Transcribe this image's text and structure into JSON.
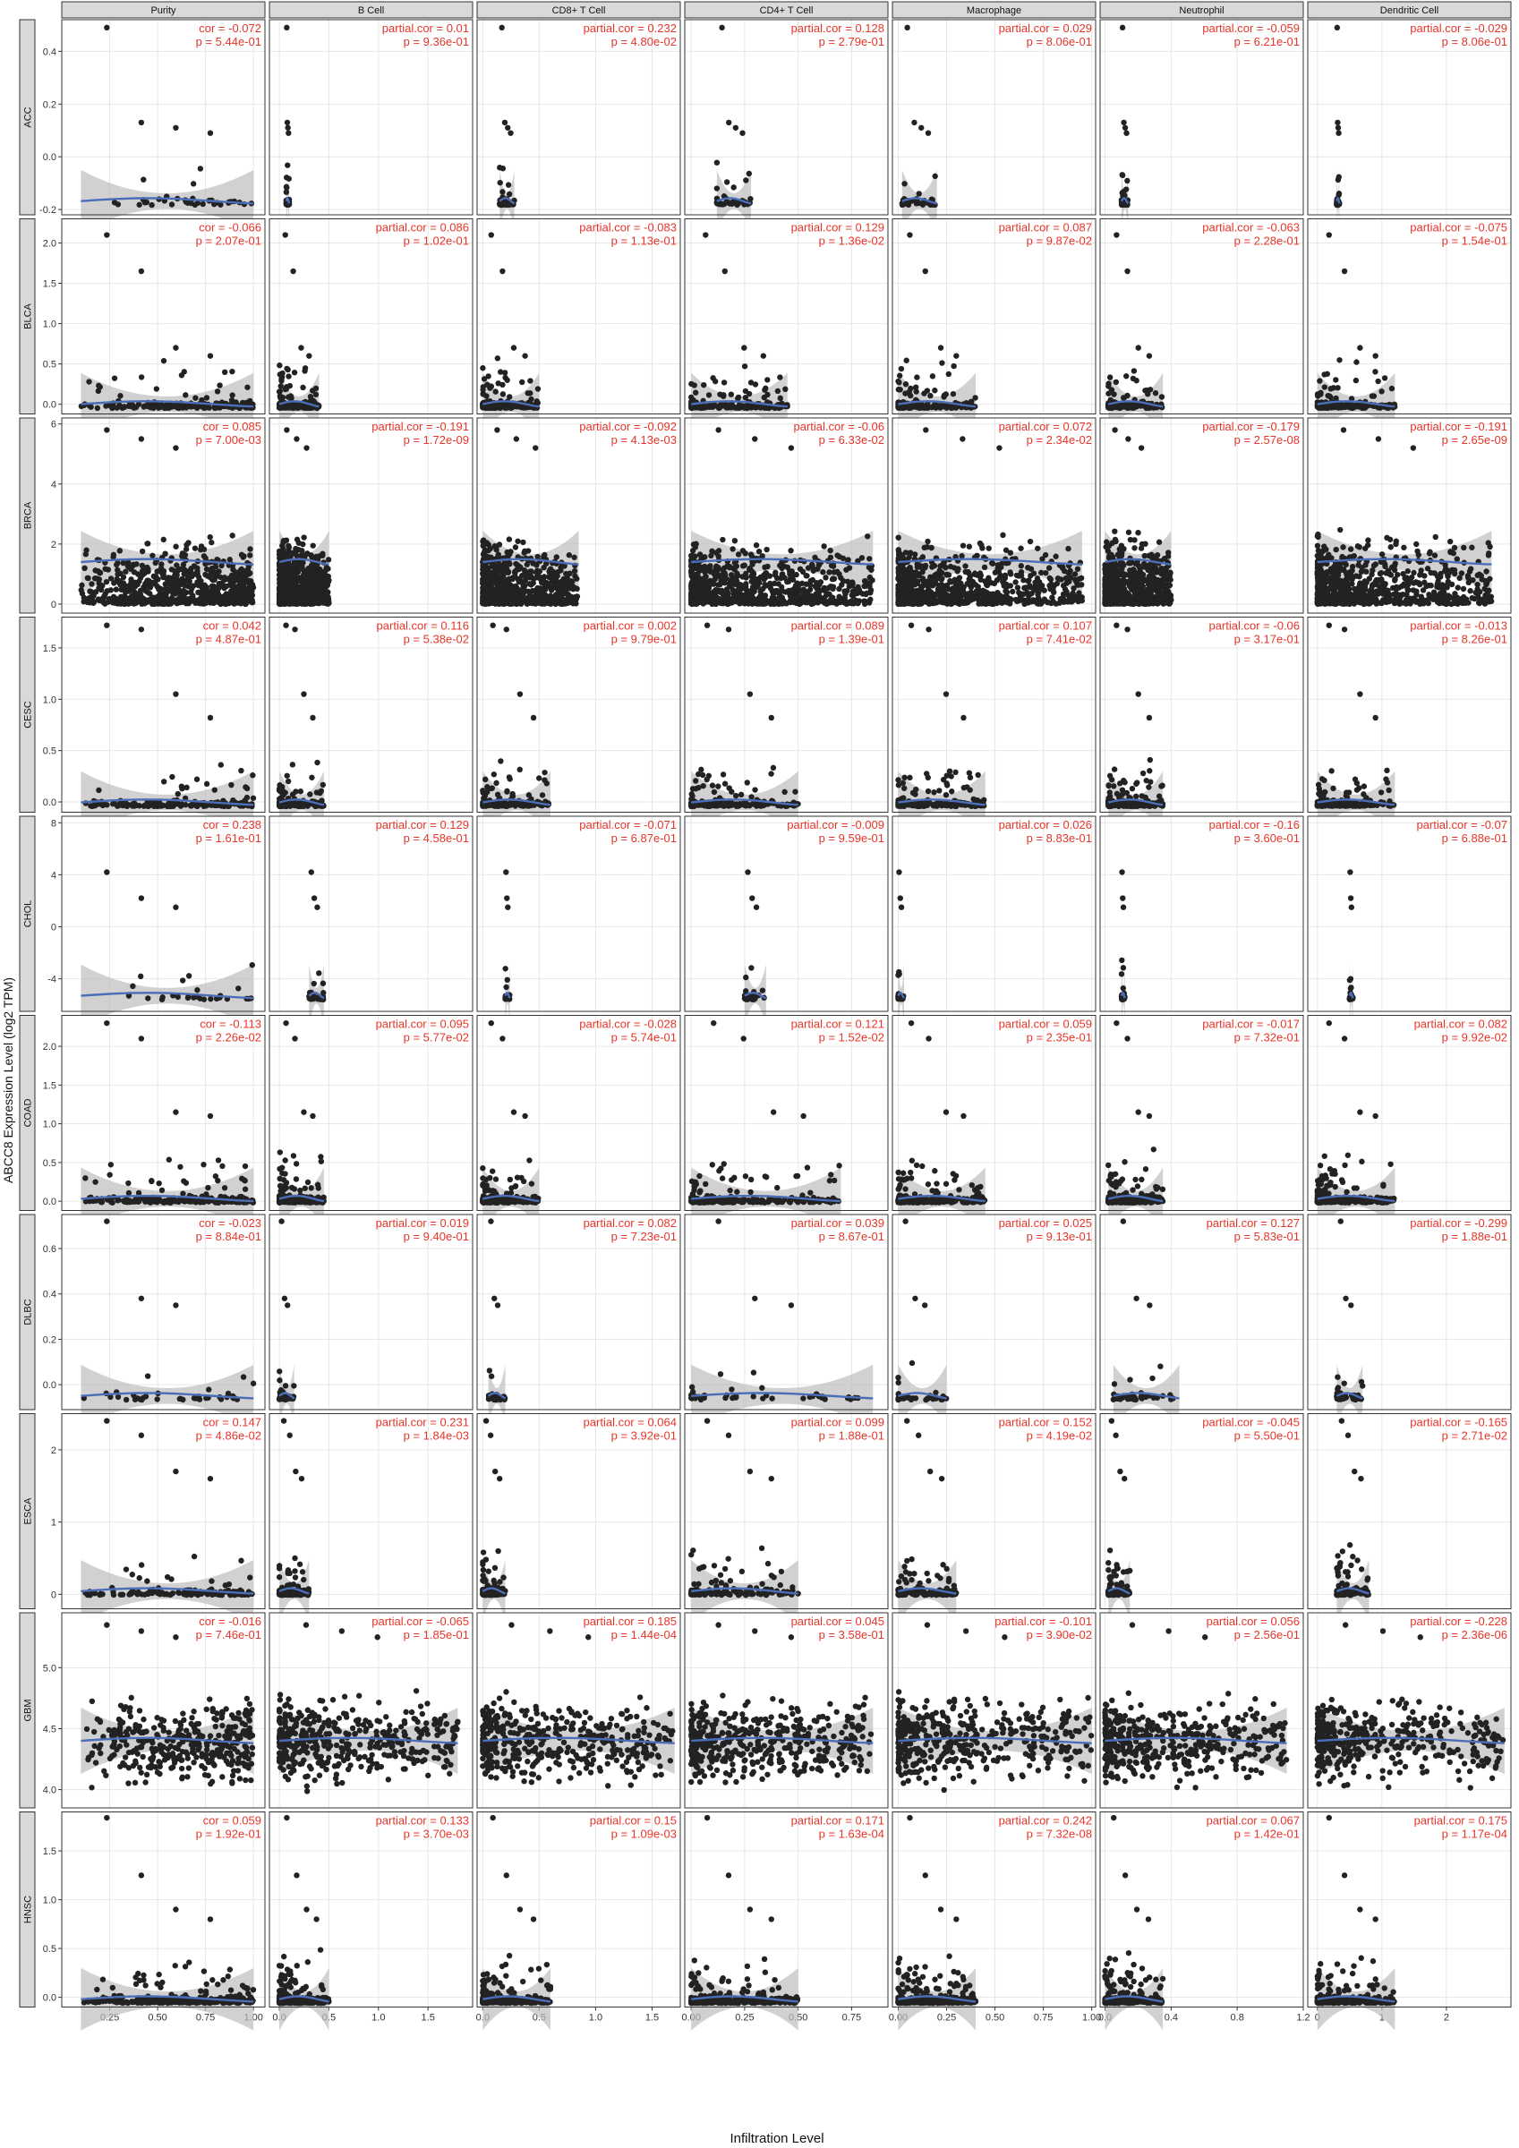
{
  "figure": {
    "ylabel": "ABCC8 Expression Level (log2 TPM)",
    "xlabel": "Infiltration Level"
  },
  "colors": {
    "point": "#222222",
    "trend": "#4a6eb8",
    "band": "#bdbdbd",
    "stat": "#e8352a",
    "strip": "#d9d9d9"
  },
  "chart_data": {
    "type": "scatter",
    "columns": [
      "Purity",
      "B Cell",
      "CD8+ T Cell",
      "CD4+ T Cell",
      "Macrophage",
      "Neutrophil",
      "Dendritic Cell"
    ],
    "x_axes": [
      {
        "ticks": [
          0.25,
          0.5,
          0.75,
          1.0
        ],
        "labels": [
          "0.25",
          "0.50",
          "0.75",
          "1.00"
        ],
        "lim": [
          0.0,
          1.06
        ]
      },
      {
        "ticks": [
          0.0,
          0.5,
          1.0,
          1.5
        ],
        "labels": [
          "0.0",
          "0.5",
          "1.0",
          "1.5"
        ],
        "lim": [
          -0.1,
          1.95
        ]
      },
      {
        "ticks": [
          0.0,
          0.5,
          1.0,
          1.5
        ],
        "labels": [
          "0.0",
          "0.5",
          "1.0",
          "1.5"
        ],
        "lim": [
          -0.05,
          1.75
        ]
      },
      {
        "ticks": [
          0.0,
          0.25,
          0.5,
          0.75
        ],
        "labels": [
          "0.00",
          "0.25",
          "0.50",
          "0.75"
        ],
        "lim": [
          -0.03,
          0.92
        ]
      },
      {
        "ticks": [
          0.0,
          0.25,
          0.5,
          0.75,
          1.0
        ],
        "labels": [
          "0.00",
          "0.25",
          "0.50",
          "0.75",
          "1.00"
        ],
        "lim": [
          -0.03,
          1.02
        ]
      },
      {
        "ticks": [
          0.0,
          0.4,
          0.8,
          1.2
        ],
        "labels": [
          "0.0",
          "0.4",
          "0.8",
          "1.2"
        ],
        "lim": [
          -0.03,
          1.2
        ]
      },
      {
        "ticks": [
          0,
          1,
          2
        ],
        "labels": [
          "0",
          "1",
          "2"
        ],
        "lim": [
          -0.15,
          3.0
        ]
      }
    ],
    "rows": [
      {
        "name": "ACC",
        "ylim": [
          -0.22,
          0.52
        ],
        "yticks": [
          -0.2,
          0.0,
          0.2,
          0.4
        ],
        "ylabels": [
          "-0.2",
          "0.0",
          "0.2",
          "0.4"
        ],
        "stats": [
          [
            "cor = -0.072",
            "p = 5.44e-01"
          ],
          [
            "partial.cor = 0.01",
            "p = 9.36e-01"
          ],
          [
            "partial.cor = 0.232",
            "p = 4.80e-02"
          ],
          [
            "partial.cor = 0.128",
            "p = 2.79e-01"
          ],
          [
            "partial.cor = 0.029",
            "p = 8.06e-01"
          ],
          [
            "partial.cor = -0.059",
            "p = 6.21e-01"
          ],
          [
            "partial.cor = -0.029",
            "p = 8.06e-01"
          ]
        ],
        "ranges": [
          [
            0.1,
            1.0
          ],
          [
            0.07,
            0.1
          ],
          [
            0.15,
            0.28
          ],
          [
            0.12,
            0.28
          ],
          [
            0.02,
            0.2
          ],
          [
            0.1,
            0.14
          ],
          [
            0.3,
            0.34
          ]
        ],
        "outliers": [
          0.49,
          0.13,
          0.11,
          0.09
        ]
      },
      {
        "name": "BLCA",
        "ylim": [
          -0.12,
          2.3
        ],
        "yticks": [
          0.0,
          0.5,
          1.0,
          1.5,
          2.0
        ],
        "ylabels": [
          "0.0",
          "0.5",
          "1.0",
          "1.5",
          "2.0"
        ],
        "stats": [
          [
            "cor = -0.066",
            "p = 2.07e-01"
          ],
          [
            "partial.cor = 0.086",
            "p = 1.02e-01"
          ],
          [
            "partial.cor = -0.083",
            "p = 1.13e-01"
          ],
          [
            "partial.cor = 0.129",
            "p = 1.36e-02"
          ],
          [
            "partial.cor = 0.087",
            "p = 9.87e-02"
          ],
          [
            "partial.cor = -0.063",
            "p = 2.28e-01"
          ],
          [
            "partial.cor = -0.075",
            "p = 1.54e-01"
          ]
        ],
        "ranges": [
          [
            0.1,
            1.0
          ],
          [
            0.0,
            0.4
          ],
          [
            0.0,
            0.5
          ],
          [
            0.0,
            0.45
          ],
          [
            0.0,
            0.4
          ],
          [
            0.02,
            0.35
          ],
          [
            0.0,
            1.2
          ]
        ],
        "outliers": [
          2.1,
          1.65,
          0.7,
          0.6
        ]
      },
      {
        "name": "BRCA",
        "ylim": [
          -0.3,
          6.2
        ],
        "yticks": [
          0,
          2,
          4,
          6
        ],
        "ylabels": [
          "0",
          "2",
          "4",
          "6"
        ],
        "stats": [
          [
            "cor = 0.085",
            "p = 7.00e-03"
          ],
          [
            "partial.cor = -0.191",
            "p = 1.72e-09"
          ],
          [
            "partial.cor = -0.092",
            "p = 4.13e-03"
          ],
          [
            "partial.cor = -0.06",
            "p = 6.33e-02"
          ],
          [
            "partial.cor = 0.072",
            "p = 2.34e-02"
          ],
          [
            "partial.cor = -0.179",
            "p = 2.57e-08"
          ],
          [
            "partial.cor = -0.191",
            "p = 2.65e-09"
          ]
        ],
        "ranges": [
          [
            0.1,
            1.0
          ],
          [
            0.0,
            0.5
          ],
          [
            0.0,
            0.85
          ],
          [
            0.0,
            0.85
          ],
          [
            0.0,
            0.95
          ],
          [
            0.0,
            0.4
          ],
          [
            0.0,
            2.7
          ]
        ],
        "outliers": [
          5.8,
          5.5,
          5.2
        ]
      },
      {
        "name": "CESC",
        "ylim": [
          -0.1,
          1.8
        ],
        "yticks": [
          0.0,
          0.5,
          1.0,
          1.5
        ],
        "ylabels": [
          "0.0",
          "0.5",
          "1.0",
          "1.5"
        ],
        "stats": [
          [
            "cor = 0.042",
            "p = 4.87e-01"
          ],
          [
            "partial.cor = 0.116",
            "p = 5.38e-02"
          ],
          [
            "partial.cor = 0.002",
            "p = 9.79e-01"
          ],
          [
            "partial.cor = 0.089",
            "p = 1.39e-01"
          ],
          [
            "partial.cor = 0.107",
            "p = 7.41e-02"
          ],
          [
            "partial.cor = -0.06",
            "p = 3.17e-01"
          ],
          [
            "partial.cor = -0.013",
            "p = 8.26e-01"
          ]
        ],
        "ranges": [
          [
            0.1,
            1.0
          ],
          [
            0.0,
            0.45
          ],
          [
            0.0,
            0.6
          ],
          [
            0.0,
            0.5
          ],
          [
            0.0,
            0.45
          ],
          [
            0.02,
            0.35
          ],
          [
            0.0,
            1.2
          ]
        ],
        "outliers": [
          1.72,
          1.68,
          1.05,
          0.82
        ]
      },
      {
        "name": "CHOL",
        "ylim": [
          -6.5,
          8.5
        ],
        "yticks": [
          -4,
          0,
          4,
          8
        ],
        "ylabels": [
          "-4",
          "0",
          "4",
          "8"
        ],
        "stats": [
          [
            "cor = 0.238",
            "p = 1.61e-01"
          ],
          [
            "partial.cor = 0.129",
            "p = 4.58e-01"
          ],
          [
            "partial.cor = -0.071",
            "p = 6.87e-01"
          ],
          [
            "partial.cor = -0.009",
            "p = 9.59e-01"
          ],
          [
            "partial.cor = 0.026",
            "p = 8.83e-01"
          ],
          [
            "partial.cor = -0.16",
            "p = 3.60e-01"
          ],
          [
            "partial.cor = -0.07",
            "p = 6.88e-01"
          ]
        ],
        "ranges": [
          [
            0.1,
            1.0
          ],
          [
            0.3,
            0.45
          ],
          [
            0.2,
            0.24
          ],
          [
            0.25,
            0.35
          ],
          [
            0.0,
            0.03
          ],
          [
            0.1,
            0.12
          ],
          [
            0.5,
            0.55
          ]
        ],
        "outliers": [
          4.2,
          2.2,
          1.5
        ]
      },
      {
        "name": "COAD",
        "ylim": [
          -0.12,
          2.4
        ],
        "yticks": [
          0.0,
          0.5,
          1.0,
          1.5,
          2.0
        ],
        "ylabels": [
          "0.0",
          "0.5",
          "1.0",
          "1.5",
          "2.0"
        ],
        "stats": [
          [
            "cor = -0.113",
            "p = 2.26e-02"
          ],
          [
            "partial.cor = 0.095",
            "p = 5.77e-02"
          ],
          [
            "partial.cor = -0.028",
            "p = 5.74e-01"
          ],
          [
            "partial.cor = 0.121",
            "p = 1.52e-02"
          ],
          [
            "partial.cor = 0.059",
            "p = 2.35e-01"
          ],
          [
            "partial.cor = -0.017",
            "p = 7.32e-01"
          ],
          [
            "partial.cor = 0.082",
            "p = 9.92e-02"
          ]
        ],
        "ranges": [
          [
            0.1,
            1.0
          ],
          [
            0.0,
            0.45
          ],
          [
            0.0,
            0.5
          ],
          [
            0.0,
            0.7
          ],
          [
            0.0,
            0.45
          ],
          [
            0.02,
            0.35
          ],
          [
            0.0,
            1.2
          ]
        ],
        "outliers": [
          2.3,
          2.1,
          1.15,
          1.1
        ]
      },
      {
        "name": "DLBC",
        "ylim": [
          -0.11,
          0.75
        ],
        "yticks": [
          0.0,
          0.2,
          0.4,
          0.6
        ],
        "ylabels": [
          "0.0",
          "0.2",
          "0.4",
          "0.6"
        ],
        "stats": [
          [
            "cor = -0.023",
            "p = 8.84e-01"
          ],
          [
            "partial.cor = 0.019",
            "p = 9.40e-01"
          ],
          [
            "partial.cor = 0.082",
            "p = 7.23e-01"
          ],
          [
            "partial.cor = 0.039",
            "p = 8.67e-01"
          ],
          [
            "partial.cor = 0.025",
            "p = 9.13e-01"
          ],
          [
            "partial.cor = 0.127",
            "p = 5.83e-01"
          ],
          [
            "partial.cor = -0.299",
            "p = 1.88e-01"
          ]
        ],
        "ranges": [
          [
            0.1,
            1.0
          ],
          [
            0.0,
            0.15
          ],
          [
            0.05,
            0.2
          ],
          [
            0.0,
            0.85
          ],
          [
            0.0,
            0.25
          ],
          [
            0.05,
            0.45
          ],
          [
            0.3,
            0.7
          ]
        ],
        "outliers": [
          0.72,
          0.38,
          0.35
        ]
      },
      {
        "name": "ESCA",
        "ylim": [
          -0.2,
          2.5
        ],
        "yticks": [
          0,
          1,
          2
        ],
        "ylabels": [
          "0",
          "1",
          "2"
        ],
        "stats": [
          [
            "cor = 0.147",
            "p = 4.86e-02"
          ],
          [
            "partial.cor = 0.231",
            "p = 1.84e-03"
          ],
          [
            "partial.cor = 0.064",
            "p = 3.92e-01"
          ],
          [
            "partial.cor = 0.099",
            "p = 1.88e-01"
          ],
          [
            "partial.cor = 0.152",
            "p = 4.19e-02"
          ],
          [
            "partial.cor = -0.045",
            "p = 5.50e-01"
          ],
          [
            "partial.cor = -0.165",
            "p = 2.71e-02"
          ]
        ],
        "ranges": [
          [
            0.1,
            1.0
          ],
          [
            0.0,
            0.3
          ],
          [
            0.0,
            0.2
          ],
          [
            0.0,
            0.5
          ],
          [
            0.0,
            0.3
          ],
          [
            0.02,
            0.15
          ],
          [
            0.3,
            0.8
          ]
        ],
        "outliers": [
          2.4,
          2.2,
          1.7,
          1.6
        ]
      },
      {
        "name": "GBM",
        "ylim": [
          3.85,
          5.45
        ],
        "yticks": [
          4.0,
          4.5,
          5.0
        ],
        "ylabels": [
          "4.0",
          "4.5",
          "5.0"
        ],
        "stats": [
          [
            "cor = -0.016",
            "p = 7.46e-01"
          ],
          [
            "partial.cor = -0.065",
            "p = 1.85e-01"
          ],
          [
            "partial.cor = 0.185",
            "p = 1.44e-04"
          ],
          [
            "partial.cor = 0.045",
            "p = 3.58e-01"
          ],
          [
            "partial.cor = -0.101",
            "p = 3.90e-02"
          ],
          [
            "partial.cor = 0.056",
            "p = 2.56e-01"
          ],
          [
            "partial.cor = -0.228",
            "p = 2.36e-06"
          ]
        ],
        "ranges": [
          [
            0.1,
            1.0
          ],
          [
            0.0,
            1.8
          ],
          [
            0.0,
            1.7
          ],
          [
            0.0,
            0.85
          ],
          [
            0.0,
            1.0
          ],
          [
            0.0,
            1.1
          ],
          [
            0.0,
            2.9
          ]
        ],
        "outliers": [
          5.35,
          5.3,
          5.25
        ]
      },
      {
        "name": "HNSC",
        "ylim": [
          -0.1,
          1.9
        ],
        "yticks": [
          0.0,
          0.5,
          1.0,
          1.5
        ],
        "ylabels": [
          "0.0",
          "0.5",
          "1.0",
          "1.5"
        ],
        "stats": [
          [
            "cor = 0.059",
            "p = 1.92e-01"
          ],
          [
            "partial.cor = 0.133",
            "p = 3.70e-03"
          ],
          [
            "partial.cor = 0.15",
            "p = 1.09e-03"
          ],
          [
            "partial.cor = 0.171",
            "p = 1.63e-04"
          ],
          [
            "partial.cor = 0.242",
            "p = 7.32e-08"
          ],
          [
            "partial.cor = 0.067",
            "p = 1.42e-01"
          ],
          [
            "partial.cor = 0.175",
            "p = 1.17e-04"
          ]
        ],
        "ranges": [
          [
            0.1,
            1.0
          ],
          [
            0.0,
            0.5
          ],
          [
            0.0,
            0.6
          ],
          [
            0.0,
            0.5
          ],
          [
            0.0,
            0.4
          ],
          [
            0.0,
            0.35
          ],
          [
            0.0,
            1.2
          ]
        ],
        "outliers": [
          1.85,
          1.25,
          0.9,
          0.8
        ]
      }
    ]
  }
}
